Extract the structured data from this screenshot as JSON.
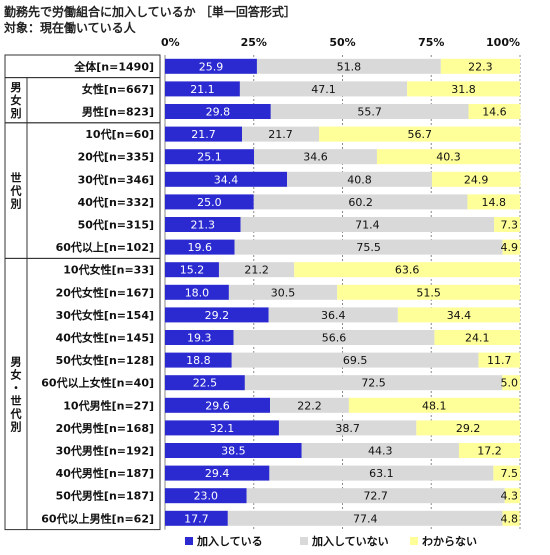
{
  "title": "勤務先で労働組合に加入しているか ［単一回答形式］",
  "subtitle": "対象：現在働いている人",
  "chart_data": {
    "type": "bar",
    "orientation": "horizontal",
    "stacked": true,
    "percent": true,
    "xlim": [
      0,
      100
    ],
    "ticks": [
      "0%",
      "25%",
      "50%",
      "75%",
      "100%"
    ],
    "tick_values": [
      0,
      25,
      50,
      75,
      100
    ],
    "grid": true,
    "legend_position": "bottom-right",
    "groups": [
      {
        "label": "",
        "rows": [
          0
        ]
      },
      {
        "label": "男女別",
        "rows": [
          1,
          2
        ]
      },
      {
        "label": "世代別",
        "rows": [
          3,
          4,
          5,
          6,
          7,
          8
        ]
      },
      {
        "label": "男女・世代別",
        "rows": [
          9,
          10,
          11,
          12,
          13,
          14,
          15,
          16,
          17,
          18,
          19,
          20
        ]
      }
    ],
    "categories": [
      "全体[n=1490]",
      "女性[n=667]",
      "男性[n=823]",
      "10代[n=60]",
      "20代[n=335]",
      "30代[n=346]",
      "40代[n=332]",
      "50代[n=315]",
      "60代以上[n=102]",
      "10代女性[n=33]",
      "20代女性[n=167]",
      "30代女性[n=154]",
      "40代女性[n=145]",
      "50代女性[n=128]",
      "60代以上女性[n=40]",
      "10代男性[n=27]",
      "20代男性[n=168]",
      "30代男性[n=192]",
      "40代男性[n=187]",
      "50代男性[n=187]",
      "60代以上男性[n=62]"
    ],
    "series": [
      {
        "name": "加入している",
        "color": "#2a2ad0",
        "values": [
          25.9,
          21.1,
          29.8,
          21.7,
          25.1,
          34.4,
          25.0,
          21.3,
          19.6,
          15.2,
          18.0,
          29.2,
          19.3,
          18.8,
          22.5,
          29.6,
          32.1,
          38.5,
          29.4,
          23.0,
          17.7
        ]
      },
      {
        "name": "加入していない",
        "color": "#d9d9d9",
        "values": [
          51.8,
          47.1,
          55.7,
          21.7,
          34.6,
          40.8,
          60.2,
          71.4,
          75.5,
          21.2,
          30.5,
          36.4,
          56.6,
          69.5,
          72.5,
          22.2,
          38.7,
          44.3,
          63.1,
          72.7,
          77.4
        ]
      },
      {
        "name": "わからない",
        "color": "#ffff99",
        "values": [
          22.3,
          31.8,
          14.6,
          56.7,
          40.3,
          24.9,
          14.8,
          7.3,
          4.9,
          63.6,
          51.5,
          34.4,
          24.1,
          11.7,
          5.0,
          48.1,
          29.2,
          17.2,
          7.5,
          4.3,
          4.8
        ]
      }
    ]
  }
}
